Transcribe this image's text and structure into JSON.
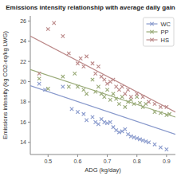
{
  "chart_data": {
    "type": "scatter",
    "title": "Emissions intensity relationship with average daily gain",
    "xlabel": "ADG (kg/day)",
    "ylabel": "Emissions intensity (kg CO2-eq/kg LWG)",
    "xlim": [
      0.44,
      0.93
    ],
    "ylim": [
      12.8,
      26.5
    ],
    "xticks": [
      0.5,
      0.6,
      0.7,
      0.8,
      0.9
    ],
    "yticks": [
      14,
      16,
      18,
      20,
      22,
      24,
      26
    ],
    "grid": false,
    "legend": "upper right",
    "marker": "x",
    "series": [
      {
        "name": "WC",
        "color": "#8899cc",
        "x": [
          0.47,
          0.49,
          0.55,
          0.58,
          0.6,
          0.62,
          0.63,
          0.65,
          0.66,
          0.67,
          0.68,
          0.69,
          0.7,
          0.71,
          0.72,
          0.73,
          0.74,
          0.75,
          0.76,
          0.77,
          0.78,
          0.79,
          0.8,
          0.81,
          0.82,
          0.83,
          0.84,
          0.86,
          0.88,
          0.9
        ],
        "values": [
          19.8,
          19.2,
          19.5,
          17.3,
          17.0,
          16.8,
          16.2,
          16.5,
          16.0,
          15.8,
          16.3,
          16.0,
          15.9,
          16.0,
          15.5,
          15.2,
          15.0,
          15.1,
          15.3,
          14.8,
          14.6,
          14.5,
          14.4,
          14.3,
          14.2,
          14.1,
          14.0,
          13.8,
          13.5,
          13.3
        ],
        "trend_x": [
          0.44,
          0.93
        ],
        "trend_y": [
          19.6,
          14.8
        ]
      },
      {
        "name": "PP",
        "color": "#99aa77",
        "x": [
          0.47,
          0.5,
          0.55,
          0.57,
          0.59,
          0.6,
          0.62,
          0.63,
          0.65,
          0.66,
          0.67,
          0.68,
          0.69,
          0.7,
          0.71,
          0.72,
          0.73,
          0.74,
          0.75,
          0.76,
          0.77,
          0.78,
          0.79,
          0.8,
          0.81,
          0.82,
          0.83,
          0.86,
          0.88,
          0.9,
          0.91
        ],
        "values": [
          20.3,
          19.3,
          20.5,
          19.5,
          20.8,
          19.5,
          19.2,
          18.8,
          20.2,
          19.0,
          19.5,
          18.8,
          18.5,
          19.2,
          18.2,
          18.8,
          18.3,
          17.8,
          18.5,
          17.5,
          18.0,
          18.2,
          17.8,
          18.5,
          17.9,
          17.5,
          17.8,
          17.0,
          16.9,
          16.7,
          16.8
        ],
        "trend_x": [
          0.44,
          0.93
        ],
        "trend_y": [
          21.2,
          16.5
        ]
      },
      {
        "name": "HS",
        "color": "#bb8888",
        "x": [
          0.47,
          0.5,
          0.52,
          0.55,
          0.57,
          0.6,
          0.61,
          0.62,
          0.63,
          0.65,
          0.66,
          0.67,
          0.68,
          0.69,
          0.7,
          0.71,
          0.72,
          0.73,
          0.74,
          0.75,
          0.76,
          0.77,
          0.78,
          0.8,
          0.82,
          0.84,
          0.86,
          0.88,
          0.9
        ],
        "values": [
          20.8,
          25.2,
          25.8,
          24.5,
          22.8,
          21.8,
          22.3,
          21.5,
          22.5,
          21.8,
          20.8,
          21.5,
          20.5,
          20.2,
          19.8,
          20.0,
          20.2,
          19.5,
          19.2,
          19.5,
          18.8,
          19.2,
          18.5,
          18.8,
          18.5,
          18.0,
          17.8,
          17.5,
          17.5
        ],
        "trend_x": [
          0.44,
          0.93
        ],
        "trend_y": [
          24.5,
          17.0
        ]
      }
    ]
  }
}
